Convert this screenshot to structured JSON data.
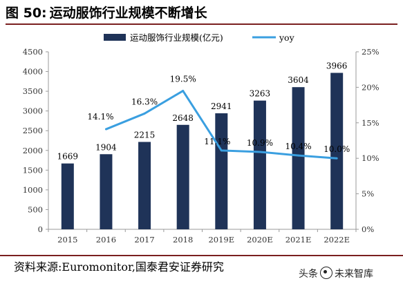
{
  "figure": {
    "label": "图 50:",
    "title": "运动服饰行业规模不断增长"
  },
  "source_text": "资料来源:Euromonitor,国泰君安证券研究",
  "watermark": {
    "text_left": "头条",
    "text_right": "未来智库",
    "icon": "toutiao-logo-icon"
  },
  "colors": {
    "bar": "#1f3358",
    "line": "#3a9fe0",
    "title_rule": "#7a1f1f"
  },
  "chart_data": {
    "type": "bar",
    "title": "",
    "categories": [
      "2015",
      "2016",
      "2017",
      "2018",
      "2019E",
      "2020E",
      "2021E",
      "2022E"
    ],
    "series": [
      {
        "name": "运动服饰行业规模(亿元)",
        "type": "bar",
        "axis": "left",
        "values": [
          1669,
          1904,
          2215,
          2648,
          2941,
          3263,
          3604,
          3966
        ],
        "labels": [
          "1669",
          "1904",
          "2215",
          "2648",
          "2941",
          "3263",
          "3604",
          "3966"
        ]
      },
      {
        "name": "yoy",
        "type": "line",
        "axis": "right",
        "values": [
          null,
          14.1,
          16.3,
          19.5,
          11.1,
          10.9,
          10.4,
          10.0
        ],
        "labels": [
          "",
          "14.1%",
          "16.3%",
          "19.5%",
          "11.1%",
          "10.9%",
          "10.4%",
          "10.0%"
        ]
      }
    ],
    "y_left": {
      "range": [
        0,
        4500
      ],
      "ticks": [
        0,
        500,
        1000,
        1500,
        2000,
        2500,
        3000,
        3500,
        4000,
        4500
      ],
      "tick_labels": [
        "0",
        "500",
        "1000",
        "1500",
        "2000",
        "2500",
        "3000",
        "3500",
        "4000",
        "4500"
      ]
    },
    "y_right": {
      "range": [
        0,
        25
      ],
      "ticks": [
        0,
        5,
        10,
        15,
        20,
        25
      ],
      "tick_labels": [
        "0%",
        "5%",
        "10%",
        "15%",
        "20%",
        "25%"
      ]
    },
    "legend_position": "top-center",
    "grid": false
  }
}
